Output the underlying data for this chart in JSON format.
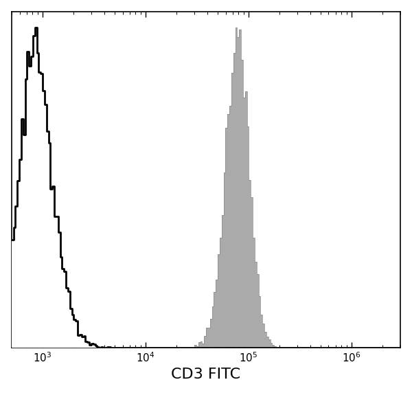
{
  "xlabel": "CD3 FITC",
  "xlabel_fontsize": 16,
  "xlim": [
    500,
    3000000
  ],
  "ylim": [
    0,
    1.05
  ],
  "background_color": "#ffffff",
  "plot_bg_color": "#ffffff",
  "border_color": "#000000",
  "isotype_color": "#000000",
  "isotype_fill": "#ffffff",
  "cd3_fill_color": "#aaaaaa",
  "cd3_edge_color": "#888888",
  "isotype_linewidth": 2.0,
  "tick_fontsize": 11,
  "isotype_peak_log": 2.95,
  "cd3_peak_log": 4.88,
  "cd3_peak_dim_log": 2.92,
  "n_bins": 200
}
